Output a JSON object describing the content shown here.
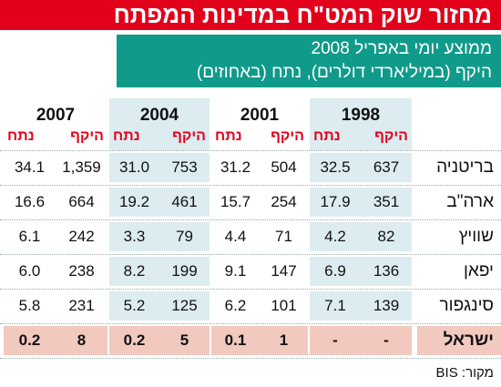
{
  "title": "מחזור שוק המט\"ח במדינות המפתח",
  "subtitle_line1": "ממוצע יומי באפריל 2008",
  "subtitle_line2": "היקף (במיליארדי דולרים), נתח (באחוזים)",
  "source": "מקור: BIS",
  "column_labels": {
    "volume": "היקף",
    "share": "נתח"
  },
  "colors": {
    "title_red": "#e2001a",
    "subtitle_teal": "#0f9a8a",
    "shade_blue": "#dcecf1",
    "shade_pink": "#f2c9bf"
  },
  "chart_data": {
    "type": "table",
    "title": "מחזור שוק המט\"ח במדינות המפתח",
    "years": [
      "1998",
      "2001",
      "2004",
      "2007"
    ],
    "rows": [
      {
        "country": "בריטניה",
        "values": [
          [
            "637",
            "32.5"
          ],
          [
            "504",
            "31.2"
          ],
          [
            "753",
            "31.0"
          ],
          [
            "1,359",
            "34.1"
          ]
        ]
      },
      {
        "country": "ארה\"ב",
        "values": [
          [
            "351",
            "17.9"
          ],
          [
            "254",
            "15.7"
          ],
          [
            "461",
            "19.2"
          ],
          [
            "664",
            "16.6"
          ]
        ]
      },
      {
        "country": "שוויץ",
        "values": [
          [
            "82",
            "4.2"
          ],
          [
            "71",
            "4.4"
          ],
          [
            "79",
            "3.3"
          ],
          [
            "242",
            "6.1"
          ]
        ]
      },
      {
        "country": "יפאן",
        "values": [
          [
            "136",
            "6.9"
          ],
          [
            "147",
            "9.1"
          ],
          [
            "199",
            "8.2"
          ],
          [
            "238",
            "6.0"
          ]
        ]
      },
      {
        "country": "סינגפור",
        "values": [
          [
            "139",
            "7.1"
          ],
          [
            "101",
            "6.2"
          ],
          [
            "125",
            "5.2"
          ],
          [
            "231",
            "5.8"
          ]
        ]
      },
      {
        "country": "ישראל",
        "values": [
          [
            "-",
            "-"
          ],
          [
            "1",
            "0.1"
          ],
          [
            "5",
            "0.2"
          ],
          [
            "8",
            "0.2"
          ]
        ]
      }
    ]
  }
}
